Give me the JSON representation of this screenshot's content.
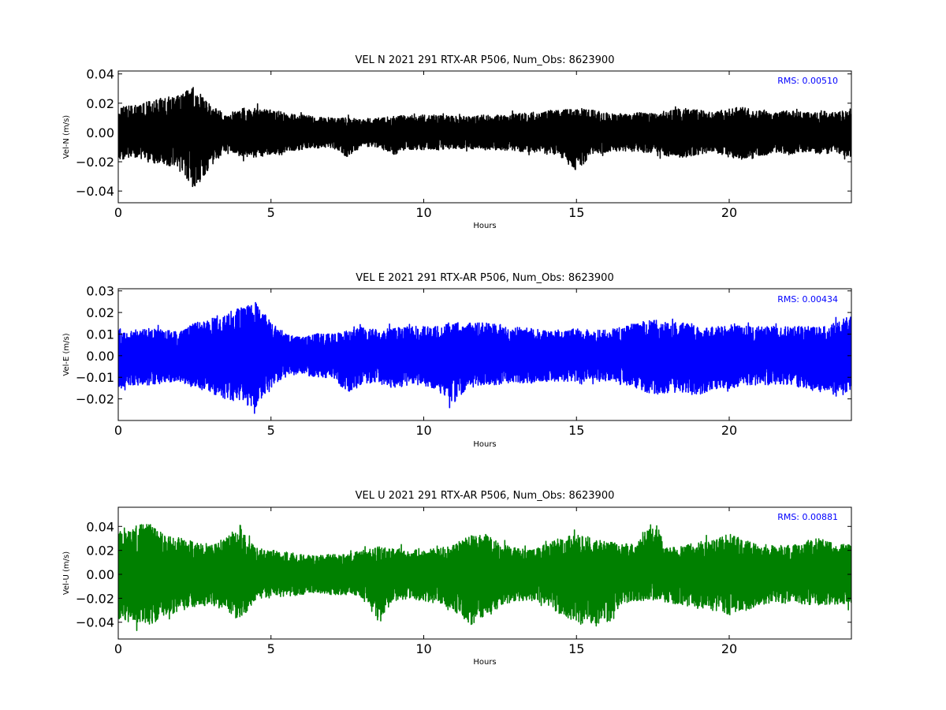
{
  "chart_data": [
    {
      "type": "line",
      "title": "VEL N 2021 291 RTX-AR  P506, Num_Obs: 8623900",
      "xlabel": "Hours",
      "ylabel": "Vel-N (m/s)",
      "xlim": [
        0,
        24
      ],
      "ylim": [
        -0.048,
        0.042
      ],
      "xticks": [
        0,
        5,
        10,
        15,
        20
      ],
      "xtick_labels": [
        "0",
        "5",
        "10",
        "15",
        "20"
      ],
      "yticks": [
        0.04,
        0.02,
        0.0,
        -0.02,
        -0.04
      ],
      "ytick_labels": [
        "0.04",
        "0.02",
        "0.00",
        "−0.02",
        "−0.04"
      ],
      "color": "#000000",
      "annotation": "RMS:  0.00510",
      "annotation_color": "#0000ff",
      "grid": false,
      "series": [
        {
          "x": [
            0,
            0.5,
            1,
            1.5,
            2,
            2.5,
            3,
            3.5,
            4,
            4.5,
            5,
            5.5,
            6,
            6.5,
            7,
            7.5,
            8,
            8.5,
            9,
            9.5,
            10,
            10.5,
            11,
            11.5,
            12,
            12.5,
            13,
            13.5,
            14,
            14.5,
            15,
            15.5,
            16,
            16.5,
            17,
            17.5,
            18,
            18.5,
            19,
            19.5,
            20,
            20.5,
            21,
            21.5,
            22,
            22.5,
            23,
            23.5,
            24
          ],
          "y": [
            0.02,
            0.022,
            0.025,
            0.028,
            0.03,
            0.038,
            0.024,
            0.014,
            0.02,
            0.02,
            0.018,
            0.016,
            0.014,
            0.013,
            0.012,
            0.012,
            0.011,
            0.012,
            0.013,
            0.014,
            0.014,
            0.014,
            0.013,
            0.013,
            0.014,
            0.014,
            0.015,
            0.016,
            0.018,
            0.018,
            0.02,
            0.018,
            0.016,
            0.015,
            0.016,
            0.016,
            0.018,
            0.02,
            0.018,
            0.016,
            0.02,
            0.02,
            0.018,
            0.016,
            0.018,
            0.016,
            0.018,
            0.016,
            0.02
          ],
          "y_min": [
            -0.022,
            -0.02,
            -0.024,
            -0.026,
            -0.028,
            -0.046,
            -0.028,
            -0.015,
            -0.02,
            -0.02,
            -0.018,
            -0.016,
            -0.014,
            -0.013,
            -0.012,
            -0.02,
            -0.011,
            -0.012,
            -0.018,
            -0.014,
            -0.014,
            -0.014,
            -0.013,
            -0.013,
            -0.014,
            -0.014,
            -0.015,
            -0.016,
            -0.018,
            -0.02,
            -0.032,
            -0.018,
            -0.016,
            -0.015,
            -0.016,
            -0.016,
            -0.02,
            -0.02,
            -0.018,
            -0.016,
            -0.02,
            -0.022,
            -0.02,
            -0.016,
            -0.018,
            -0.016,
            -0.018,
            -0.016,
            -0.02
          ]
        }
      ]
    },
    {
      "type": "line",
      "title": "VEL E 2021 291 RTX-AR  P506, Num_Obs: 8623900",
      "xlabel": "Hours",
      "ylabel": "Vel-E (m/s)",
      "xlim": [
        0,
        24
      ],
      "ylim": [
        -0.03,
        0.031
      ],
      "xticks": [
        0,
        5,
        10,
        15,
        20
      ],
      "xtick_labels": [
        "0",
        "5",
        "10",
        "15",
        "20"
      ],
      "yticks": [
        0.03,
        0.02,
        0.01,
        0.0,
        -0.01,
        -0.02
      ],
      "ytick_labels": [
        "0.03",
        "0.02",
        "0.01",
        "0.00",
        "−0.01",
        "−0.02"
      ],
      "color": "#0000ff",
      "annotation": "RMS:  0.00434",
      "annotation_color": "#0000ff",
      "grid": false,
      "series": [
        {
          "x": [
            0,
            0.5,
            1,
            1.5,
            2,
            2.5,
            3,
            3.5,
            4,
            4.5,
            5,
            5.5,
            6,
            6.5,
            7,
            7.5,
            8,
            8.5,
            9,
            9.5,
            10,
            10.5,
            11,
            11.5,
            12,
            12.5,
            13,
            13.5,
            14,
            14.5,
            15,
            15.5,
            16,
            16.5,
            17,
            17.5,
            18,
            18.5,
            19,
            19.5,
            20,
            20.5,
            21,
            21.5,
            22,
            22.5,
            23,
            23.5,
            24
          ],
          "y": [
            0.015,
            0.014,
            0.015,
            0.014,
            0.013,
            0.018,
            0.02,
            0.024,
            0.026,
            0.03,
            0.018,
            0.012,
            0.01,
            0.012,
            0.012,
            0.014,
            0.016,
            0.014,
            0.015,
            0.016,
            0.016,
            0.016,
            0.018,
            0.018,
            0.018,
            0.017,
            0.016,
            0.015,
            0.014,
            0.014,
            0.015,
            0.014,
            0.014,
            0.016,
            0.018,
            0.02,
            0.018,
            0.018,
            0.016,
            0.016,
            0.017,
            0.016,
            0.016,
            0.016,
            0.016,
            0.016,
            0.016,
            0.018,
            0.022
          ],
          "y_min": [
            -0.018,
            -0.016,
            -0.016,
            -0.015,
            -0.014,
            -0.018,
            -0.02,
            -0.024,
            -0.026,
            -0.028,
            -0.016,
            -0.012,
            -0.01,
            -0.012,
            -0.012,
            -0.02,
            -0.016,
            -0.014,
            -0.018,
            -0.016,
            -0.016,
            -0.02,
            -0.026,
            -0.016,
            -0.016,
            -0.016,
            -0.015,
            -0.015,
            -0.014,
            -0.014,
            -0.014,
            -0.014,
            -0.014,
            -0.016,
            -0.018,
            -0.022,
            -0.02,
            -0.02,
            -0.022,
            -0.018,
            -0.018,
            -0.016,
            -0.016,
            -0.016,
            -0.016,
            -0.018,
            -0.02,
            -0.022,
            -0.02
          ]
        }
      ]
    },
    {
      "type": "line",
      "title": "VEL U 2021 291 RTX-AR  P506, Num_Obs: 8623900",
      "xlabel": "Hours",
      "ylabel": "Vel-U (m/s)",
      "xlim": [
        0,
        24
      ],
      "ylim": [
        -0.054,
        0.056
      ],
      "xticks": [
        0,
        5,
        10,
        15,
        20
      ],
      "xtick_labels": [
        "0",
        "5",
        "10",
        "15",
        "20"
      ],
      "yticks": [
        0.04,
        0.02,
        0.0,
        -0.02,
        -0.04
      ],
      "ytick_labels": [
        "0.04",
        "0.02",
        "0.00",
        "−0.02",
        "−0.04"
      ],
      "color": "#008000",
      "annotation": "RMS:  0.00881",
      "annotation_color": "#0000ff",
      "grid": false,
      "series": [
        {
          "x": [
            0,
            0.5,
            1,
            1.5,
            2,
            2.5,
            3,
            3.5,
            4,
            4.5,
            5,
            5.5,
            6,
            6.5,
            7,
            7.5,
            8,
            8.5,
            9,
            9.5,
            10,
            10.5,
            11,
            11.5,
            12,
            12.5,
            13,
            13.5,
            14,
            14.5,
            15,
            15.5,
            16,
            16.5,
            17,
            17.5,
            18,
            18.5,
            19,
            19.5,
            20,
            20.5,
            21,
            21.5,
            22,
            22.5,
            23,
            23.5,
            24
          ],
          "y": [
            0.045,
            0.048,
            0.05,
            0.04,
            0.036,
            0.032,
            0.03,
            0.036,
            0.048,
            0.026,
            0.024,
            0.022,
            0.02,
            0.018,
            0.02,
            0.02,
            0.024,
            0.028,
            0.026,
            0.024,
            0.024,
            0.026,
            0.03,
            0.038,
            0.04,
            0.03,
            0.026,
            0.024,
            0.03,
            0.036,
            0.04,
            0.036,
            0.032,
            0.03,
            0.03,
            0.055,
            0.026,
            0.028,
            0.032,
            0.034,
            0.04,
            0.034,
            0.03,
            0.028,
            0.03,
            0.032,
            0.036,
            0.03,
            0.03
          ],
          "y_min": [
            -0.045,
            -0.048,
            -0.05,
            -0.042,
            -0.036,
            -0.032,
            -0.03,
            -0.036,
            -0.046,
            -0.026,
            -0.024,
            -0.022,
            -0.02,
            -0.018,
            -0.02,
            -0.02,
            -0.024,
            -0.046,
            -0.026,
            -0.024,
            -0.026,
            -0.03,
            -0.036,
            -0.05,
            -0.044,
            -0.032,
            -0.026,
            -0.026,
            -0.03,
            -0.04,
            -0.05,
            -0.048,
            -0.05,
            -0.03,
            -0.026,
            -0.026,
            -0.028,
            -0.03,
            -0.034,
            -0.036,
            -0.04,
            -0.036,
            -0.03,
            -0.028,
            -0.028,
            -0.03,
            -0.03,
            -0.03,
            -0.03
          ]
        }
      ]
    }
  ]
}
